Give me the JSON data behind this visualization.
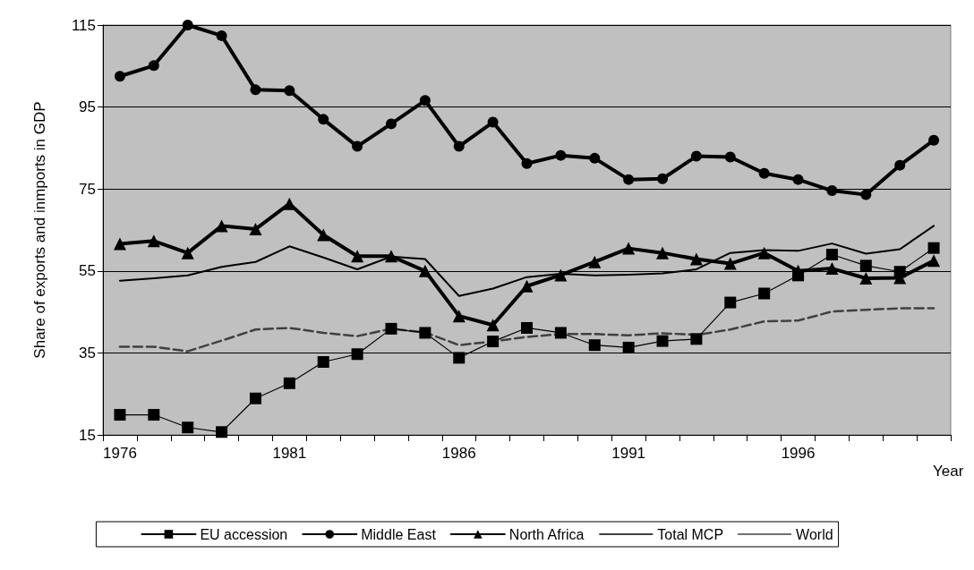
{
  "chart_data": {
    "type": "line",
    "ylabel": "Share of exports and inmports in GDP",
    "xlabel": "Year",
    "categories": [
      "1976",
      null,
      null,
      null,
      null,
      "1981",
      null,
      null,
      null,
      null,
      "1986",
      null,
      null,
      null,
      null,
      "1991",
      null,
      null,
      null,
      null,
      "1996",
      null,
      null,
      null,
      null
    ],
    "series": [
      {
        "name": "EU accession",
        "color": "#000000",
        "marker": "square",
        "values": [
          19.9,
          19.9,
          16.8,
          15.7,
          23.9,
          27.6,
          32.8,
          34.7,
          40.9,
          39.9,
          33.8,
          37.8,
          41.1,
          39.9,
          36.9,
          36.3,
          37.9,
          38.4,
          47.3,
          49.5,
          53.9,
          59,
          56.3,
          54.8,
          60.6
        ]
      },
      {
        "name": "Middle East",
        "color": "#000000",
        "marker": "circle",
        "values": [
          102.5,
          105.1,
          115,
          112.4,
          99.2,
          99,
          92,
          85.4,
          90.9,
          96.6,
          85.4,
          91.3,
          81.2,
          83.2,
          82.5,
          77.3,
          77.5,
          83,
          82.8,
          78.8,
          77.3,
          74.6,
          73.6,
          80.8,
          86.9
        ]
      },
      {
        "name": "North Africa",
        "color": "#000000",
        "marker": "triangle",
        "values": [
          61.6,
          62.3,
          59.4,
          66,
          65.2,
          71.4,
          63.8,
          58.6,
          58.6,
          55,
          44,
          41.8,
          51.3,
          54,
          57.2,
          60.5,
          59.4,
          57.9,
          56.8,
          59.4,
          55,
          55.6,
          53.2,
          53.3,
          57.5
        ]
      },
      {
        "name": "Total MCP",
        "color": "#000000",
        "marker": "none",
        "values": [
          52.6,
          53.2,
          53.9,
          56,
          57.2,
          61,
          58.3,
          55.4,
          58.5,
          57.9,
          48.9,
          50.7,
          53.5,
          54.3,
          53.9,
          54.1,
          54.4,
          55.4,
          59.4,
          60.1,
          59.9,
          61.7,
          59.2,
          60.3,
          66
        ]
      },
      {
        "name": "World",
        "color": "#404040",
        "marker": "none",
        "line_style": "dashed",
        "values": [
          36.5,
          36.5,
          35.4,
          38,
          40.7,
          41.1,
          39.9,
          39.1,
          40.9,
          40,
          36.9,
          37.8,
          38.9,
          39.6,
          39.6,
          39.3,
          39.8,
          39.4,
          40.7,
          42.7,
          42.9,
          45.1,
          45.5,
          45.9,
          45.9
        ]
      }
    ],
    "ylim": [
      15,
      115
    ],
    "yticks": [
      15,
      35,
      55,
      75,
      95,
      115
    ],
    "grid": "y",
    "legend": "bottom"
  }
}
